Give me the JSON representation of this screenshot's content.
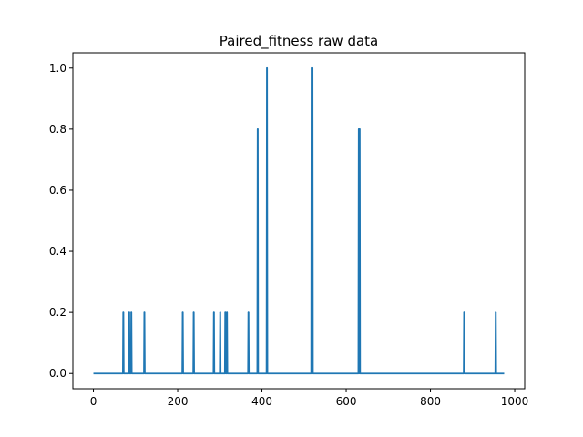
{
  "chart_data": {
    "type": "line",
    "title": "Paired_fitness raw data",
    "xlabel": "",
    "ylabel": "",
    "xlim": [
      -48.7,
      1023.7
    ],
    "ylim": [
      -0.05,
      1.05
    ],
    "x_ticks": [
      0,
      200,
      400,
      600,
      800,
      1000
    ],
    "x_tick_labels": [
      "0",
      "200",
      "400",
      "600",
      "800",
      "1000"
    ],
    "y_ticks": [
      0.0,
      0.2,
      0.4,
      0.6,
      0.8,
      1.0
    ],
    "y_tick_labels": [
      "0.0",
      "0.2",
      "0.4",
      "0.6",
      "0.8",
      "1.0"
    ],
    "grid": false,
    "legend": "none",
    "x_range": [
      0,
      975
    ],
    "baseline": 0,
    "spikes": [
      {
        "x": 71,
        "y": 0.2
      },
      {
        "x": 85,
        "y": 0.2
      },
      {
        "x": 90,
        "y": 0.2
      },
      {
        "x": 121,
        "y": 0.2
      },
      {
        "x": 212,
        "y": 0.2
      },
      {
        "x": 238,
        "y": 0.2
      },
      {
        "x": 286,
        "y": 0.2
      },
      {
        "x": 301,
        "y": 0.2
      },
      {
        "x": 313,
        "y": 0.2
      },
      {
        "x": 317,
        "y": 0.2
      },
      {
        "x": 368,
        "y": 0.2
      },
      {
        "x": 390,
        "y": 0.8
      },
      {
        "x": 412,
        "y": 1.0
      },
      {
        "x": 518,
        "y": 1.0
      },
      {
        "x": 520,
        "y": 1.0
      },
      {
        "x": 630,
        "y": 0.8
      },
      {
        "x": 632,
        "y": 0.8
      },
      {
        "x": 880,
        "y": 0.2
      },
      {
        "x": 955,
        "y": 0.2
      }
    ],
    "colors": {
      "series": "#1f77b4",
      "axes": "#000000",
      "background": "#ffffff"
    }
  }
}
